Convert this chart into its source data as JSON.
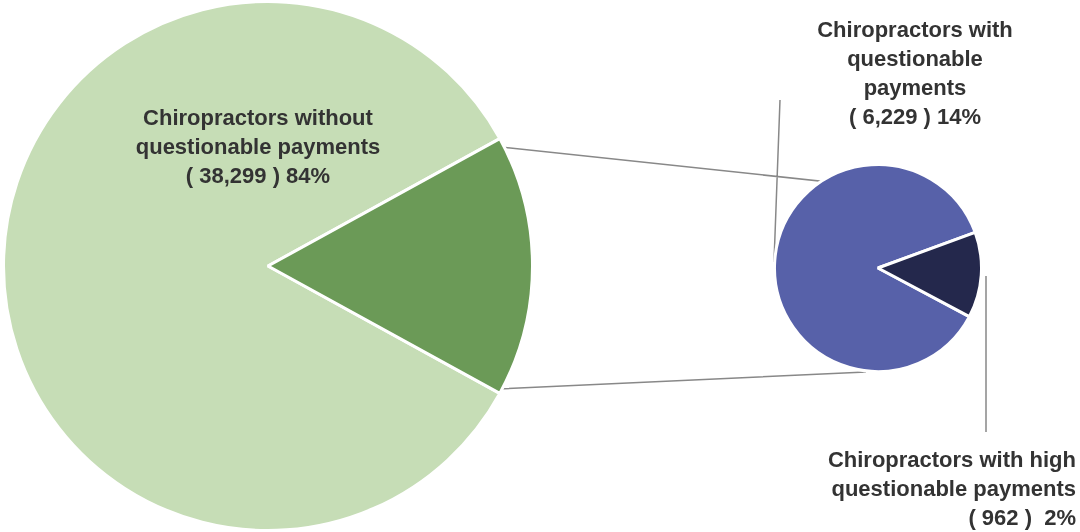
{
  "chart_data": [
    {
      "type": "pie",
      "categories": [
        "Chiropractors without questionable payments",
        null
      ],
      "values": [
        84,
        16
      ],
      "colors": [
        "#c6ddb6",
        "#6b9a57"
      ],
      "value_labels": [
        "( 38,299 ) 84%",
        null
      ]
    },
    {
      "type": "pie",
      "categories": [
        "Chiropractors with questionable payments",
        "Chiropractors with high questionable payments"
      ],
      "values": [
        6229,
        962
      ],
      "colors": [
        "#5761a9",
        "#24284c"
      ],
      "value_labels": [
        "( 6,229 ) 14%",
        "( 962 )  2%"
      ]
    }
  ]
}
